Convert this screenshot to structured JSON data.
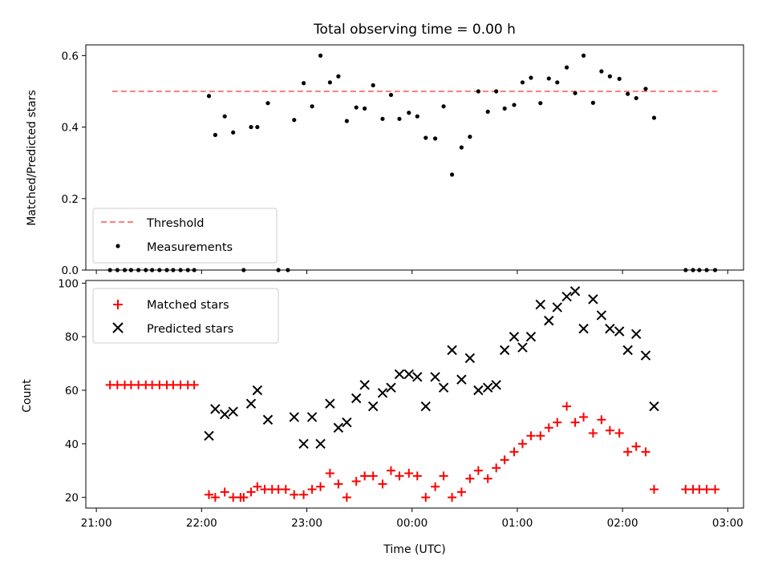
{
  "chart_data": [
    {
      "type": "scatter",
      "title": "Total observing time = 0.00 h",
      "ylabel": "Matched/Predicted stars",
      "xlabel": "",
      "ylim": [
        0,
        0.63
      ],
      "yticks": [
        0.0,
        0.2,
        0.4,
        0.6
      ],
      "ytick_labels": [
        "0.0",
        "0.2",
        "0.4",
        "0.6"
      ],
      "xlim_hours": [
        20.9,
        27.15
      ],
      "legend_position": "lower-left",
      "threshold": {
        "name": "Threshold",
        "value": 0.5,
        "x_start": 21.15,
        "x_end": 26.9,
        "color": "#ff7f7f",
        "style": "dashed"
      },
      "series": [
        {
          "name": "Measurements",
          "color": "#000000",
          "marker": "dot",
          "x": [
            21.13,
            21.2,
            21.27,
            21.33,
            21.4,
            21.47,
            21.53,
            21.6,
            21.67,
            21.73,
            21.8,
            21.87,
            21.93,
            22.07,
            22.13,
            22.22,
            22.3,
            22.4,
            22.47,
            22.53,
            22.63,
            22.73,
            22.82,
            22.88,
            22.97,
            23.05,
            23.13,
            23.22,
            23.3,
            23.38,
            23.47,
            23.55,
            23.63,
            23.72,
            23.8,
            23.88,
            23.97,
            24.05,
            24.13,
            24.22,
            24.3,
            24.38,
            24.47,
            24.55,
            24.63,
            24.72,
            24.8,
            24.88,
            24.97,
            25.05,
            25.13,
            25.22,
            25.3,
            25.38,
            25.47,
            25.55,
            25.63,
            25.72,
            25.8,
            25.88,
            25.97,
            26.05,
            26.13,
            26.22,
            26.3,
            26.6,
            26.67,
            26.73,
            26.8,
            26.88
          ],
          "y": [
            0.0,
            0.0,
            0.0,
            0.0,
            0.0,
            0.0,
            0.0,
            0.0,
            0.0,
            0.0,
            0.0,
            0.0,
            0.0,
            0.487,
            0.378,
            0.43,
            0.385,
            0.0,
            0.4,
            0.4,
            0.467,
            0.0,
            0.0,
            0.42,
            0.523,
            0.458,
            0.6,
            0.525,
            0.542,
            0.417,
            0.455,
            0.452,
            0.517,
            0.423,
            0.49,
            0.423,
            0.44,
            0.43,
            0.37,
            0.368,
            0.458,
            0.267,
            0.343,
            0.373,
            0.5,
            0.443,
            0.5,
            0.452,
            0.462,
            0.525,
            0.538,
            0.467,
            0.536,
            0.525,
            0.567,
            0.495,
            0.6,
            0.468,
            0.556,
            0.542,
            0.535,
            0.493,
            0.481,
            0.507,
            0.426,
            0.0,
            0.0,
            0.0,
            0.0,
            0.0
          ]
        }
      ]
    },
    {
      "type": "scatter",
      "title": "",
      "ylabel": "Count",
      "xlabel": "Time (UTC)",
      "ylim": [
        16,
        101
      ],
      "yticks": [
        20,
        40,
        60,
        80,
        100
      ],
      "ytick_labels": [
        "20",
        "40",
        "60",
        "80",
        "100"
      ],
      "xlim_hours": [
        20.9,
        27.15
      ],
      "xticks_hours": [
        21,
        22,
        23,
        24,
        25,
        26,
        27
      ],
      "xtick_labels": [
        "21:00",
        "22:00",
        "23:00",
        "00:00",
        "01:00",
        "02:00",
        "03:00"
      ],
      "legend_position": "upper-left",
      "series": [
        {
          "name": "Matched stars",
          "color": "#ff0000",
          "marker": "plus",
          "x": [
            21.13,
            21.2,
            21.27,
            21.33,
            21.4,
            21.47,
            21.53,
            21.6,
            21.67,
            21.73,
            21.8,
            21.87,
            21.93,
            22.07,
            22.13,
            22.22,
            22.3,
            22.37,
            22.4,
            22.47,
            22.53,
            22.6,
            22.67,
            22.73,
            22.8,
            22.88,
            22.97,
            23.05,
            23.13,
            23.22,
            23.3,
            23.38,
            23.47,
            23.55,
            23.63,
            23.72,
            23.8,
            23.88,
            23.97,
            24.05,
            24.13,
            24.22,
            24.3,
            24.38,
            24.47,
            24.55,
            24.63,
            24.72,
            24.8,
            24.88,
            24.97,
            25.05,
            25.13,
            25.22,
            25.3,
            25.38,
            25.47,
            25.55,
            25.63,
            25.72,
            25.8,
            25.88,
            25.97,
            26.05,
            26.13,
            26.22,
            26.3,
            26.6,
            26.67,
            26.73,
            26.8,
            26.88
          ],
          "y": [
            62,
            62,
            62,
            62,
            62,
            62,
            62,
            62,
            62,
            62,
            62,
            62,
            62,
            21,
            20,
            22,
            20,
            20,
            20,
            22,
            24,
            23,
            23,
            23,
            23,
            21,
            21,
            23,
            24,
            29,
            25,
            20,
            26,
            28,
            28,
            25,
            30,
            28,
            29,
            28,
            20,
            24,
            28,
            20,
            22,
            27,
            30,
            27,
            31,
            34,
            37,
            40,
            43,
            43,
            46,
            48,
            54,
            48,
            50,
            44,
            49,
            45,
            44,
            37,
            39,
            37,
            23,
            23,
            23,
            23,
            23,
            23
          ]
        },
        {
          "name": "Predicted stars",
          "color": "#000000",
          "marker": "x",
          "x": [
            22.07,
            22.13,
            22.22,
            22.3,
            22.47,
            22.53,
            22.63,
            22.88,
            22.97,
            23.05,
            23.13,
            23.22,
            23.3,
            23.38,
            23.47,
            23.55,
            23.63,
            23.72,
            23.8,
            23.88,
            23.97,
            24.05,
            24.13,
            24.22,
            24.3,
            24.38,
            24.47,
            24.55,
            24.63,
            24.72,
            24.8,
            24.88,
            24.97,
            25.05,
            25.13,
            25.22,
            25.3,
            25.38,
            25.47,
            25.55,
            25.63,
            25.72,
            25.8,
            25.88,
            25.97,
            26.05,
            26.13,
            26.22,
            26.3
          ],
          "y": [
            43,
            53,
            51,
            52,
            55,
            60,
            49,
            50,
            40,
            50,
            40,
            55,
            46,
            48,
            57,
            62,
            54,
            59,
            61,
            66,
            66,
            65,
            54,
            65,
            61,
            75,
            64,
            72,
            60,
            61,
            62,
            75,
            80,
            76,
            80,
            92,
            86,
            91,
            95,
            97,
            83,
            94,
            88,
            83,
            82,
            75,
            81,
            73,
            54
          ]
        }
      ]
    }
  ]
}
